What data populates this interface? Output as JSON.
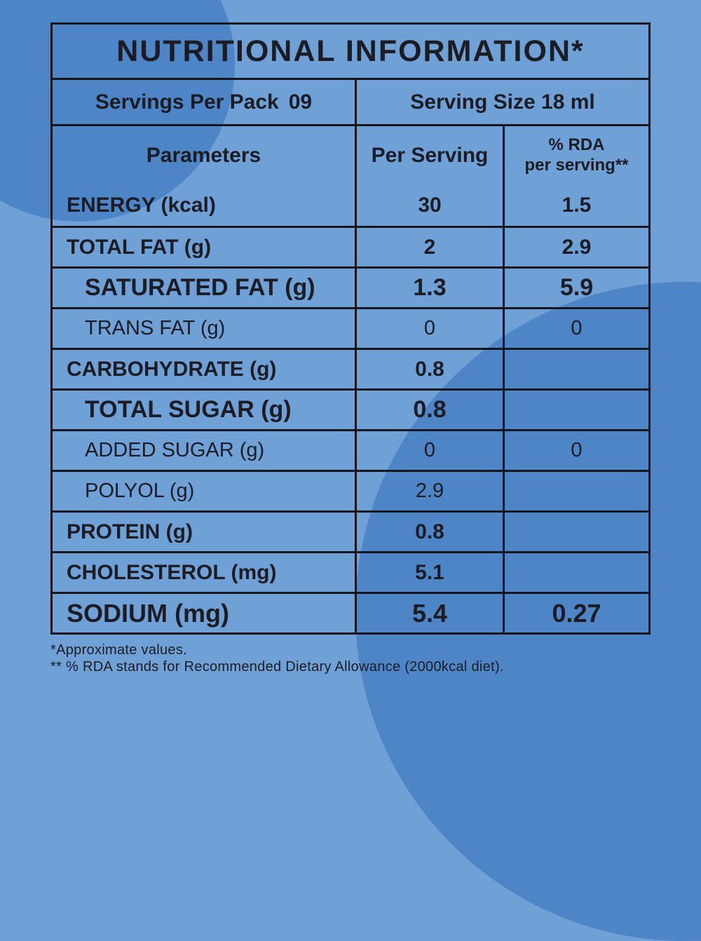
{
  "background": {
    "base_color": "#6FA1D6",
    "circle_color": "#4D85C6",
    "text_color": "#1C1C24"
  },
  "table": {
    "title": "NUTRITIONAL INFORMATION*",
    "servings_row": {
      "left_label": "Servings Per Pack",
      "left_value": "09",
      "right_label": "Serving Size 18 ml"
    },
    "header": {
      "parameters": "Parameters",
      "per_serving": "Per Serving",
      "rda_line1": "% RDA",
      "rda_line2": "per serving**"
    },
    "rows": [
      {
        "label": "ENERGY (kcal)",
        "per_serving": "30",
        "rda": "1.5",
        "emphasis": "bold",
        "indent": 0
      },
      {
        "label": "TOTAL FAT (g)",
        "per_serving": "2",
        "rda": "2.9",
        "emphasis": "bold",
        "indent": 0
      },
      {
        "label": "SATURATED FAT (g)",
        "per_serving": "1.3",
        "rda": "5.9",
        "emphasis": "bold-large",
        "indent": 1
      },
      {
        "label": "TRANS FAT (g)",
        "per_serving": "0",
        "rda": "0",
        "emphasis": "light",
        "indent": 1
      },
      {
        "label": "CARBOHYDRATE (g)",
        "per_serving": "0.8",
        "rda": "",
        "emphasis": "bold",
        "indent": 0
      },
      {
        "label": "TOTAL SUGAR (g)",
        "per_serving": "0.8",
        "rda": "",
        "emphasis": "bold-large",
        "indent": 1
      },
      {
        "label": "ADDED SUGAR (g)",
        "per_serving": "0",
        "rda": "0",
        "emphasis": "light",
        "indent": 1
      },
      {
        "label": "POLYOL (g)",
        "per_serving": "2.9",
        "rda": "",
        "emphasis": "light",
        "indent": 1
      },
      {
        "label": "PROTEIN (g)",
        "per_serving": "0.8",
        "rda": "",
        "emphasis": "bold",
        "indent": 0
      },
      {
        "label": "CHOLESTEROL (mg)",
        "per_serving": "5.1",
        "rda": "",
        "emphasis": "bold",
        "indent": 0
      },
      {
        "label": "SODIUM (mg)",
        "per_serving": "5.4",
        "rda": "0.27",
        "emphasis": "bold-xlarge",
        "indent": 0
      }
    ]
  },
  "footnotes": [
    "*Approximate values.",
    "** % RDA stands for Recommended Dietary Allowance (2000kcal diet)."
  ]
}
